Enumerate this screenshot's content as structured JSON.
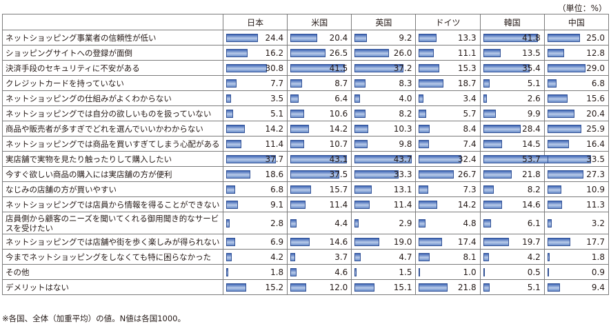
{
  "unit": "（単位：%）",
  "note": "※各国、全体（加重平均）の値。N値は各国1000。",
  "chart_data": {
    "type": "table",
    "countries": [
      "日本",
      "米国",
      "英国",
      "ドイツ",
      "韓国",
      "中国"
    ],
    "categories": [
      "ネットショッピング事業者の信頼性が低い",
      "ショッピングサイトへの登録が面倒",
      "決済手段のセキュリティに不安がある",
      "クレジットカードを持っていない",
      "ネットショッピングの仕組みがよくわからない",
      "ネットショッピングでは自分の欲しいものを扱っていない",
      "商品や販売者が多すぎでどれを選んでいいかわからない",
      "ネットショッピングでは商品を買いすぎてしまう心配がある",
      "実店舗で実物を見たり触ったりして購入したい",
      "今すぐ欲しい商品の購入には実店舗の方が便利",
      "なじみの店舗の方が買いやすい",
      "ネットショッピングでは店員から情報を得ることができない",
      "店員側から顧客のニーズを聞いてくれる御用聞き的なサービスを受けたい",
      "ネットショッピングでは店舗や街を歩く楽しみが得られない",
      "今までネットショッピングをしなくても特に困らなかった",
      "その他",
      "デメリットはない"
    ],
    "series": [
      {
        "name": "日本",
        "values": [
          24.4,
          16.2,
          30.8,
          7.7,
          3.5,
          5.1,
          14.2,
          11.4,
          37.7,
          18.6,
          6.8,
          9.1,
          2.8,
          6.9,
          4.2,
          1.8,
          15.2
        ]
      },
      {
        "name": "米国",
        "values": [
          20.4,
          26.5,
          41.5,
          8.7,
          6.4,
          10.6,
          14.2,
          10.7,
          43.1,
          37.5,
          15.7,
          11.4,
          4.4,
          14.6,
          3.7,
          4.6,
          12.0
        ]
      },
      {
        "name": "英国",
        "values": [
          9.2,
          26.0,
          37.2,
          8.3,
          4.0,
          8.2,
          10.3,
          9.8,
          43.7,
          33.3,
          13.1,
          11.4,
          2.9,
          19.0,
          4.7,
          1.5,
          15.1
        ]
      },
      {
        "name": "ドイツ",
        "values": [
          13.3,
          11.1,
          15.3,
          18.7,
          3.4,
          5.7,
          8.4,
          7.4,
          32.4,
          26.7,
          7.3,
          14.2,
          4.8,
          17.4,
          8.1,
          1.0,
          21.8
        ]
      },
      {
        "name": "韓国",
        "values": [
          41.8,
          13.5,
          35.4,
          5.1,
          2.6,
          9.9,
          28.4,
          14.5,
          53.7,
          21.8,
          8.2,
          14.6,
          6.1,
          19.7,
          4.2,
          0.5,
          5.1
        ]
      },
      {
        "name": "中国",
        "values": [
          25.0,
          12.8,
          29.0,
          6.8,
          15.6,
          20.4,
          25.9,
          16.4,
          33.5,
          27.3,
          10.9,
          11.3,
          3.2,
          17.7,
          1.8,
          0.9,
          9.4
        ]
      }
    ],
    "xlim": [
      0,
      100
    ]
  }
}
